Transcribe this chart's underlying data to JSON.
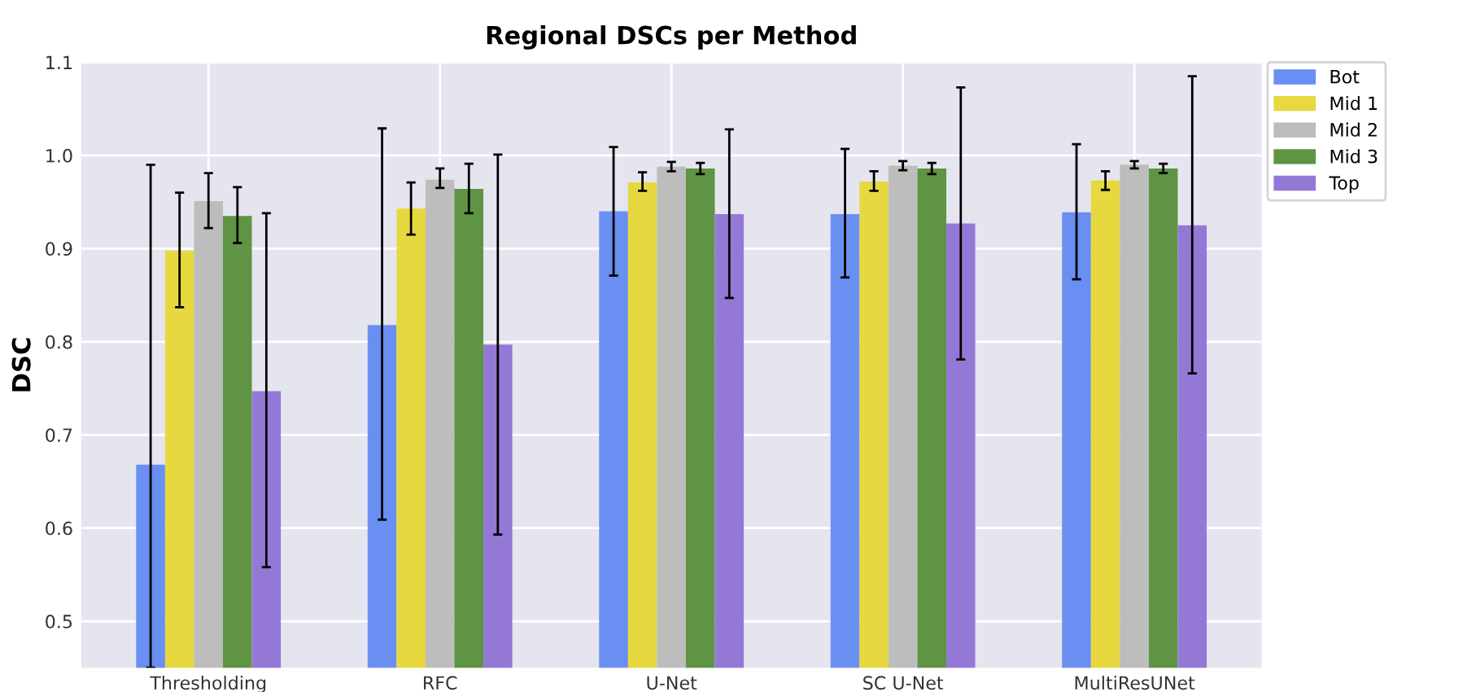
{
  "chart_data": {
    "type": "bar",
    "title": "Regional DSCs per Method",
    "ylabel": "DSC",
    "categories": [
      "Thresholding",
      "RFC",
      "U-Net",
      "SC U-Net",
      "MultiResUNet"
    ],
    "series": [
      {
        "name": "Bot",
        "color": "#6a8ff2",
        "values": [
          0.668,
          0.818,
          0.94,
          0.937,
          0.939
        ],
        "errors": [
          [
            0.45,
            0.99
          ],
          [
            0.609,
            1.029
          ],
          [
            0.871,
            1.009
          ],
          [
            0.869,
            1.007
          ],
          [
            0.867,
            1.012
          ]
        ]
      },
      {
        "name": "Mid 1",
        "color": "#e6d83e",
        "values": [
          0.898,
          0.943,
          0.971,
          0.972,
          0.973
        ],
        "errors": [
          [
            0.837,
            0.96
          ],
          [
            0.915,
            0.971
          ],
          [
            0.962,
            0.982
          ],
          [
            0.962,
            0.983
          ],
          [
            0.963,
            0.983
          ]
        ]
      },
      {
        "name": "Mid 2",
        "color": "#bdbdbd",
        "values": [
          0.951,
          0.974,
          0.988,
          0.989,
          0.99
        ],
        "errors": [
          [
            0.922,
            0.981
          ],
          [
            0.965,
            0.986
          ],
          [
            0.983,
            0.993
          ],
          [
            0.984,
            0.994
          ],
          [
            0.986,
            0.994
          ]
        ]
      },
      {
        "name": "Mid 3",
        "color": "#5e9444",
        "values": [
          0.935,
          0.964,
          0.986,
          0.986,
          0.986
        ],
        "errors": [
          [
            0.906,
            0.966
          ],
          [
            0.938,
            0.991
          ],
          [
            0.98,
            0.992
          ],
          [
            0.98,
            0.992
          ],
          [
            0.981,
            0.991
          ]
        ]
      },
      {
        "name": "Top",
        "color": "#9478d6",
        "values": [
          0.747,
          0.797,
          0.937,
          0.927,
          0.925
        ],
        "errors": [
          [
            0.558,
            0.938
          ],
          [
            0.593,
            1.001
          ],
          [
            0.847,
            1.028
          ],
          [
            0.781,
            1.073
          ],
          [
            0.766,
            1.085
          ]
        ]
      }
    ],
    "ylim": [
      0.45,
      1.1
    ],
    "yticks": [
      0.5,
      0.6,
      0.7,
      0.8,
      0.9,
      {
        "value": 1,
        "label": "1.0"
      },
      1.1
    ],
    "grid": true,
    "legend": "top right"
  }
}
